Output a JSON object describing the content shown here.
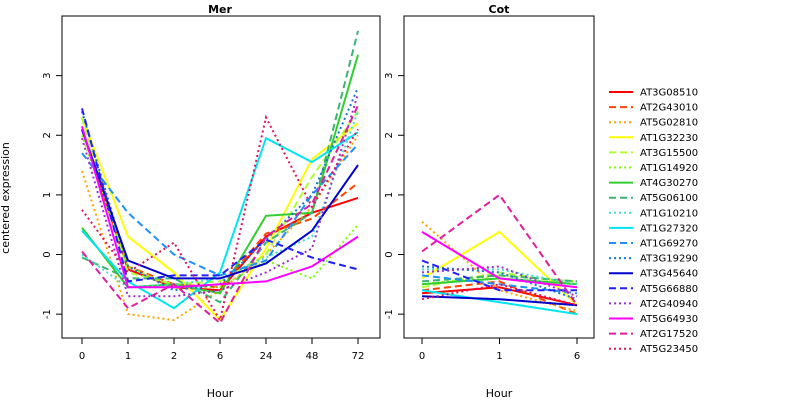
{
  "chart_data": [
    {
      "type": "line",
      "title": "Mer",
      "xlabel": "Hour",
      "ylabel": "centered expression",
      "categories": [
        "0",
        "1",
        "2",
        "6",
        "24",
        "48",
        "72"
      ],
      "ylim": [
        -1.4,
        4.0
      ],
      "yticks": [
        -1,
        0,
        1,
        2,
        3
      ],
      "grid": false,
      "series": [
        {
          "name": "AT3G08510",
          "color": "#ff0000",
          "dash": "solid",
          "values": [
            2.1,
            -0.25,
            -0.55,
            -0.6,
            0.3,
            0.7,
            0.95
          ]
        },
        {
          "name": "AT2G43010",
          "color": "#ff4500",
          "dash": "dashed",
          "values": [
            2.3,
            -0.2,
            -0.5,
            -0.55,
            0.35,
            0.6,
            1.2
          ]
        },
        {
          "name": "AT5G02810",
          "color": "#ffa500",
          "dash": "dotted",
          "values": [
            1.4,
            -1.0,
            -1.1,
            -0.6,
            0.0,
            0.8,
            2.0
          ]
        },
        {
          "name": "AT1G32230",
          "color": "#ffff00",
          "dash": "solid",
          "values": [
            2.3,
            0.3,
            -0.3,
            -1.1,
            0.1,
            1.6,
            2.2
          ]
        },
        {
          "name": "AT3G15500",
          "color": "#adff2f",
          "dash": "dashed",
          "values": [
            2.3,
            -0.3,
            -0.5,
            -0.45,
            0.0,
            1.3,
            2.4
          ]
        },
        {
          "name": "AT1G14920",
          "color": "#7fff00",
          "dash": "dotted",
          "values": [
            2.0,
            -0.2,
            -0.55,
            -0.55,
            -0.1,
            -0.4,
            0.5
          ]
        },
        {
          "name": "AT4G30270",
          "color": "#32cd32",
          "dash": "solid",
          "values": [
            0.45,
            -0.55,
            -0.5,
            -0.65,
            0.65,
            0.7,
            3.35
          ]
        },
        {
          "name": "AT5G06100",
          "color": "#3cb371",
          "dash": "dashed",
          "values": [
            -0.05,
            -0.4,
            -0.4,
            -0.8,
            0.2,
            0.7,
            3.75
          ]
        },
        {
          "name": "AT1G10210",
          "color": "#40e0d0",
          "dash": "dotted",
          "values": [
            0.0,
            -0.55,
            -0.5,
            -0.4,
            -0.05,
            0.3,
            2.4
          ]
        },
        {
          "name": "AT1G27320",
          "color": "#00e5ee",
          "dash": "solid",
          "values": [
            0.4,
            -0.45,
            -0.9,
            -0.3,
            1.95,
            1.55,
            2.05
          ]
        },
        {
          "name": "AT1G69270",
          "color": "#1e90ff",
          "dash": "dashed",
          "values": [
            1.7,
            0.7,
            0.0,
            -0.35,
            -0.1,
            1.0,
            1.85
          ]
        },
        {
          "name": "AT3G19290",
          "color": "#1874cd",
          "dash": "dotted",
          "values": [
            2.4,
            -0.2,
            -0.6,
            -0.5,
            0.25,
            1.0,
            2.8
          ]
        },
        {
          "name": "AT3G45640",
          "color": "#0000cd",
          "dash": "solid",
          "values": [
            2.1,
            -0.1,
            -0.4,
            -0.4,
            -0.15,
            0.4,
            1.5
          ]
        },
        {
          "name": "AT5G66880",
          "color": "#2020ff",
          "dash": "dashed",
          "values": [
            2.45,
            -0.45,
            -0.35,
            -0.35,
            0.25,
            -0.05,
            -0.25
          ]
        },
        {
          "name": "AT2G40940",
          "color": "#9932cc",
          "dash": "dotted",
          "values": [
            1.95,
            -0.7,
            -0.7,
            -0.6,
            -0.3,
            0.1,
            2.7
          ]
        },
        {
          "name": "AT5G64930",
          "color": "#ff00ff",
          "dash": "solid",
          "values": [
            2.15,
            -0.55,
            -0.55,
            -0.5,
            -0.45,
            -0.2,
            0.3
          ]
        },
        {
          "name": "AT2G17520",
          "color": "#dd1fa0",
          "dash": "dashed",
          "values": [
            0.05,
            -0.9,
            -0.5,
            -1.15,
            0.3,
            0.85,
            2.5
          ]
        },
        {
          "name": "AT5G23450",
          "color": "#e0115f",
          "dash": "dotted",
          "values": [
            0.75,
            -0.3,
            0.2,
            -1.1,
            2.3,
            0.8,
            2.1
          ]
        }
      ]
    },
    {
      "type": "line",
      "title": "Cot",
      "xlabel": "Hour",
      "ylabel": "",
      "categories": [
        "0",
        "1",
        "6"
      ],
      "ylim": [
        -1.4,
        4.0
      ],
      "yticks": [
        -1,
        0,
        1,
        2,
        3
      ],
      "grid": false,
      "series": [
        {
          "name": "AT3G08510",
          "color": "#ff0000",
          "dash": "solid",
          "values": [
            -0.65,
            -0.55,
            -0.85
          ]
        },
        {
          "name": "AT2G43010",
          "color": "#ff4500",
          "dash": "dashed",
          "values": [
            -0.6,
            -0.45,
            -1.0
          ]
        },
        {
          "name": "AT5G02810",
          "color": "#ffa500",
          "dash": "dotted",
          "values": [
            0.55,
            -0.6,
            -0.95
          ]
        },
        {
          "name": "AT1G32230",
          "color": "#ffff00",
          "dash": "solid",
          "values": [
            -0.4,
            0.38,
            -0.85
          ]
        },
        {
          "name": "AT3G15500",
          "color": "#adff2f",
          "dash": "dashed",
          "values": [
            -0.55,
            -0.3,
            -0.5
          ]
        },
        {
          "name": "AT1G14920",
          "color": "#7fff00",
          "dash": "dotted",
          "values": [
            -0.5,
            -0.35,
            -0.45
          ]
        },
        {
          "name": "AT4G30270",
          "color": "#32cd32",
          "dash": "solid",
          "values": [
            -0.5,
            -0.4,
            -0.5
          ]
        },
        {
          "name": "AT5G06100",
          "color": "#3cb371",
          "dash": "dashed",
          "values": [
            -0.45,
            -0.35,
            -0.45
          ]
        },
        {
          "name": "AT1G10210",
          "color": "#40e0d0",
          "dash": "dotted",
          "values": [
            -0.25,
            -0.25,
            -0.5
          ]
        },
        {
          "name": "AT1G27320",
          "color": "#00e5ee",
          "dash": "solid",
          "values": [
            -0.6,
            -0.8,
            -1.0
          ]
        },
        {
          "name": "AT1G69270",
          "color": "#1e90ff",
          "dash": "dashed",
          "values": [
            -0.35,
            -0.5,
            -0.65
          ]
        },
        {
          "name": "AT3G19290",
          "color": "#1874cd",
          "dash": "dotted",
          "values": [
            -0.2,
            -0.3,
            -0.75
          ]
        },
        {
          "name": "AT3G45640",
          "color": "#0000cd",
          "dash": "solid",
          "values": [
            -0.7,
            -0.75,
            -0.85
          ]
        },
        {
          "name": "AT5G66880",
          "color": "#2020ff",
          "dash": "dashed",
          "values": [
            -0.1,
            -0.6,
            -0.6
          ]
        },
        {
          "name": "AT2G40940",
          "color": "#9932cc",
          "dash": "dotted",
          "values": [
            -0.3,
            -0.2,
            -0.7
          ]
        },
        {
          "name": "AT5G64930",
          "color": "#ff00ff",
          "dash": "solid",
          "values": [
            0.38,
            -0.4,
            -0.55
          ]
        },
        {
          "name": "AT2G17520",
          "color": "#dd1fa0",
          "dash": "dashed",
          "values": [
            0.05,
            1.0,
            -0.85
          ]
        },
        {
          "name": "AT5G23450",
          "color": "#e0115f",
          "dash": "dotted",
          "values": [
            -0.75,
            -0.5,
            -0.85
          ]
        }
      ]
    }
  ]
}
